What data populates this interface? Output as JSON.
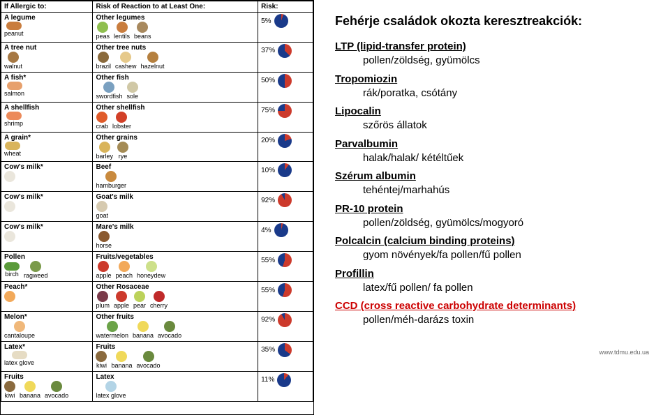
{
  "chart": {
    "headers": [
      "If Allergic to:",
      "Risk of Reaction to at Least One:",
      "Risk:"
    ],
    "rows": [
      {
        "allergen": "A legume",
        "main": "peanut",
        "main_col": "#c97d3e",
        "main_shape": "wide",
        "other_label": "Other legumes",
        "items": [
          {
            "l": "peas",
            "c": "#8fbf4f"
          },
          {
            "l": "lentils",
            "c": "#c97d3e"
          },
          {
            "l": "beans",
            "c": "#a8895e"
          }
        ],
        "pct": "5%",
        "pie_pct": 5
      },
      {
        "allergen": "A tree nut",
        "main": "walnut",
        "main_col": "#a67843",
        "main_shape": "round",
        "other_label": "Other tree nuts",
        "items": [
          {
            "l": "brazil",
            "c": "#8a6a3c"
          },
          {
            "l": "cashew",
            "c": "#e6c98a"
          },
          {
            "l": "hazelnut",
            "c": "#b5803f"
          }
        ],
        "pct": "37%",
        "pie_pct": 37
      },
      {
        "allergen": "A fish*",
        "main": "salmon",
        "main_col": "#e7a06c",
        "main_shape": "wide",
        "other_label": "Other fish",
        "items": [
          {
            "l": "swordfish",
            "c": "#7aa0c0"
          },
          {
            "l": "sole",
            "c": "#d0c8a6"
          }
        ],
        "pct": "50%",
        "pie_pct": 50
      },
      {
        "allergen": "A shellfish",
        "main": "shrimp",
        "main_col": "#ec8a5a",
        "main_shape": "wide",
        "other_label": "Other shellfish",
        "items": [
          {
            "l": "crab",
            "c": "#e05b2a"
          },
          {
            "l": "lobster",
            "c": "#d24028"
          }
        ],
        "pct": "75%",
        "pie_pct": 75
      },
      {
        "allergen": "A grain*",
        "main": "wheat",
        "main_col": "#d9b45b",
        "main_shape": "wide",
        "other_label": "Other grains",
        "items": [
          {
            "l": "barley",
            "c": "#d9b45b"
          },
          {
            "l": "rye",
            "c": "#a48b55"
          }
        ],
        "pct": "20%",
        "pie_pct": 20
      },
      {
        "allergen": "Cow's milk*",
        "main": "",
        "main_col": "#eae6dc",
        "main_shape": "round",
        "other_label": "Beef",
        "items": [
          {
            "l": "hamburger",
            "c": "#c98a3e"
          }
        ],
        "pct": "10%",
        "pie_pct": 10
      },
      {
        "allergen": "Cow's milk*",
        "main": "",
        "main_col": "#eae6dc",
        "main_shape": "round",
        "other_label": "Goat's milk",
        "items": [
          {
            "l": "goat",
            "c": "#d6cab0"
          }
        ],
        "pct": "92%",
        "pie_pct": 92
      },
      {
        "allergen": "Cow's milk*",
        "main": "",
        "main_col": "#eae6dc",
        "main_shape": "round",
        "other_label": "Mare's milk",
        "items": [
          {
            "l": "horse",
            "c": "#8a5a30"
          }
        ],
        "pct": "4%",
        "pie_pct": 4
      },
      {
        "allergen": "Pollen",
        "main": "birch",
        "main_col": "#5a9a3a",
        "main_shape": "wide",
        "extra_main": "ragweed",
        "other_label": "Fruits/vegetables",
        "items": [
          {
            "l": "apple",
            "c": "#cc3a2c"
          },
          {
            "l": "peach",
            "c": "#f2a95a"
          },
          {
            "l": "honeydew",
            "c": "#cde08a"
          }
        ],
        "pct": "55%",
        "pie_pct": 55
      },
      {
        "allergen": "Peach*",
        "main": "",
        "main_col": "#f2a95a",
        "main_shape": "round",
        "other_label": "Other Rosaceae",
        "items": [
          {
            "l": "plum",
            "c": "#7a3a4a"
          },
          {
            "l": "apple",
            "c": "#cc3a2c"
          },
          {
            "l": "pear",
            "c": "#bcd25a"
          },
          {
            "l": "cherry",
            "c": "#c02a2a"
          }
        ],
        "pct": "55%",
        "pie_pct": 55
      },
      {
        "allergen": "Melon*",
        "main": "cantaloupe",
        "main_col": "#f0b87a",
        "main_shape": "round",
        "other_label": "Other fruits",
        "items": [
          {
            "l": "watermelon",
            "c": "#6ba348"
          },
          {
            "l": "banana",
            "c": "#f0d95a"
          },
          {
            "l": "avocado",
            "c": "#6a8a3e"
          }
        ],
        "pct": "92%",
        "pie_pct": 92
      },
      {
        "allergen": "Latex*",
        "main": "latex glove",
        "main_col": "#e6dcc4",
        "main_shape": "wide",
        "other_label": "Fruits",
        "items": [
          {
            "l": "kiwi",
            "c": "#8a6a3e"
          },
          {
            "l": "banana",
            "c": "#f0d95a"
          },
          {
            "l": "avocado",
            "c": "#6a8a3e"
          }
        ],
        "pct": "35%",
        "pie_pct": 35
      },
      {
        "allergen": "Fruits",
        "main": "kiwi",
        "main_col": "#8a6a3e",
        "main_shape": "round",
        "extra_main": "avocado",
        "extra_col": "#6a8a3e",
        "mid_main": "banana",
        "mid_col": "#f0d95a",
        "other_label": "Latex",
        "items": [
          {
            "l": "latex glove",
            "c": "#b3d4e6"
          }
        ],
        "pct": "11%",
        "pie_pct": 11
      }
    ],
    "pie_fill": "#cc3a2c",
    "pie_empty": "#1a3a8a"
  },
  "text": {
    "title": "Fehérje családok okozta keresztreakciók:",
    "entries": [
      {
        "cat": "LTP (lipid-transfer protein)",
        "sub": "pollen/zöldség, gyümölcs"
      },
      {
        "cat": "Tropomiozin",
        "sub": "rák/poratka, csótány"
      },
      {
        "cat": "Lipocalin",
        "sub": "szőrös állatok"
      },
      {
        "cat": "Parvalbumin",
        "sub": "halak/halak/ kétéltűek"
      },
      {
        "cat": "Szérum albumin",
        "sub": "tehéntej/marhahús"
      },
      {
        "cat": "PR-10 protein",
        "sub": "pollen/zöldség, gyümölcs/mogyoró"
      },
      {
        "cat": "Polcalcin (calcium binding proteins)",
        "sub": "gyom növények/fa pollen/fű pollen"
      },
      {
        "cat": "Profillin",
        "sub": "latex/fű pollen/ fa pollen"
      },
      {
        "cat": "CCD (cross reactive carbohydrate determinants)",
        "sub": "pollen/méh-darázs toxin",
        "ccd": true
      }
    ],
    "source": "www.tdmu.edu.ua"
  }
}
